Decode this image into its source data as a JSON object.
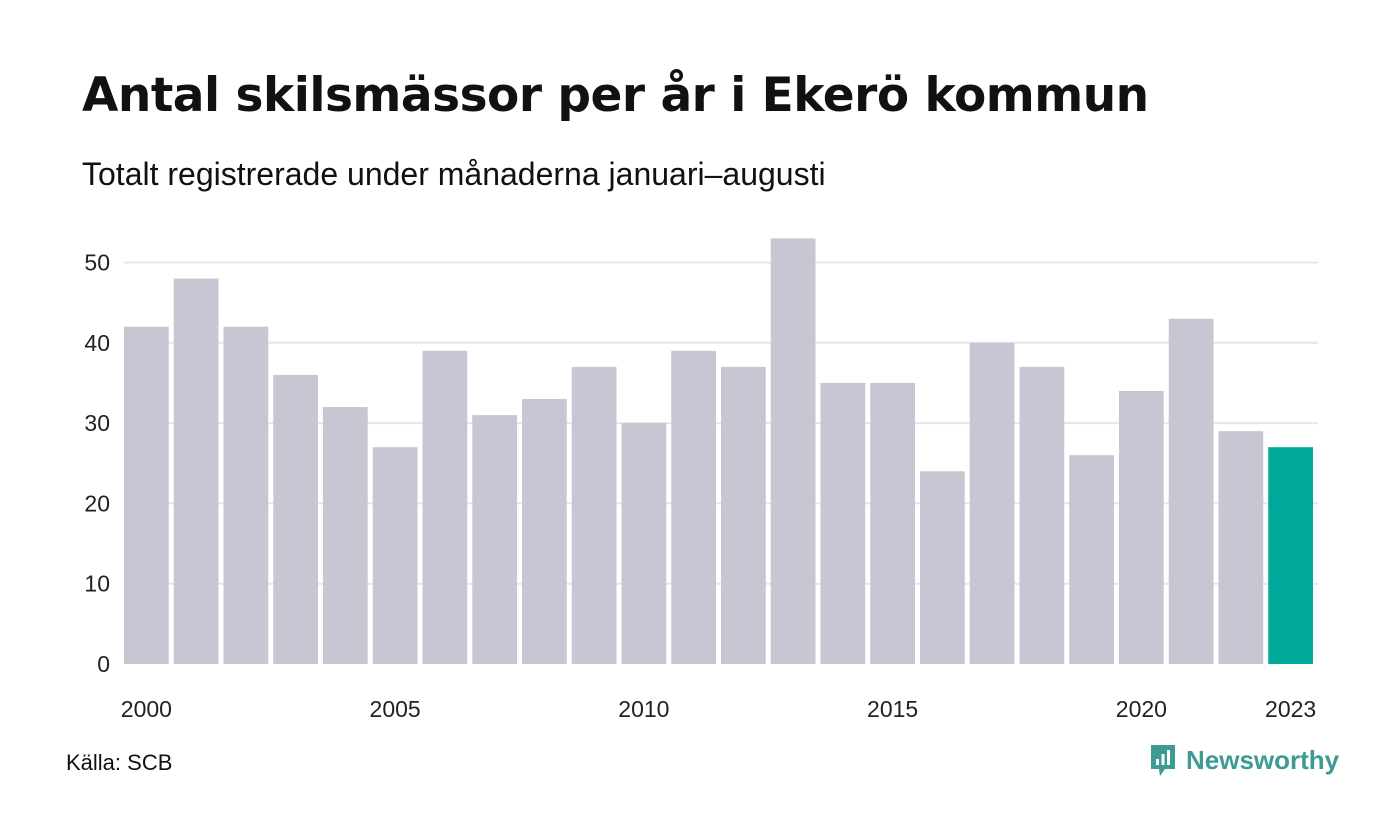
{
  "title": "Antal skilsmässor per år i Ekerö kommun",
  "subtitle": "Totalt registrerade under månaderna januari–augusti",
  "source": "Källa: SCB",
  "brand": {
    "name": "Newsworthy",
    "icon": "newsworthy-logo-icon",
    "color": "#3d9b94"
  },
  "chart_data": {
    "type": "bar",
    "categories": [
      "2000",
      "2001",
      "2002",
      "2003",
      "2004",
      "2005",
      "2006",
      "2007",
      "2008",
      "2009",
      "2010",
      "2011",
      "2012",
      "2013",
      "2014",
      "2015",
      "2016",
      "2017",
      "2018",
      "2019",
      "2020",
      "2021",
      "2022",
      "2023"
    ],
    "values": [
      42,
      48,
      42,
      36,
      32,
      27,
      39,
      31,
      33,
      37,
      30,
      39,
      37,
      53,
      35,
      35,
      24,
      40,
      37,
      26,
      34,
      43,
      29,
      27
    ],
    "x_tick_labels": [
      "2000",
      "2005",
      "2010",
      "2015",
      "2020",
      "2023"
    ],
    "y_ticks": [
      0,
      10,
      20,
      30,
      40,
      50
    ],
    "ylim": [
      0,
      53
    ],
    "grid": true,
    "bar_color": "#c8c6d2",
    "highlight_color": "#00a89a",
    "highlight_category": "2023"
  }
}
